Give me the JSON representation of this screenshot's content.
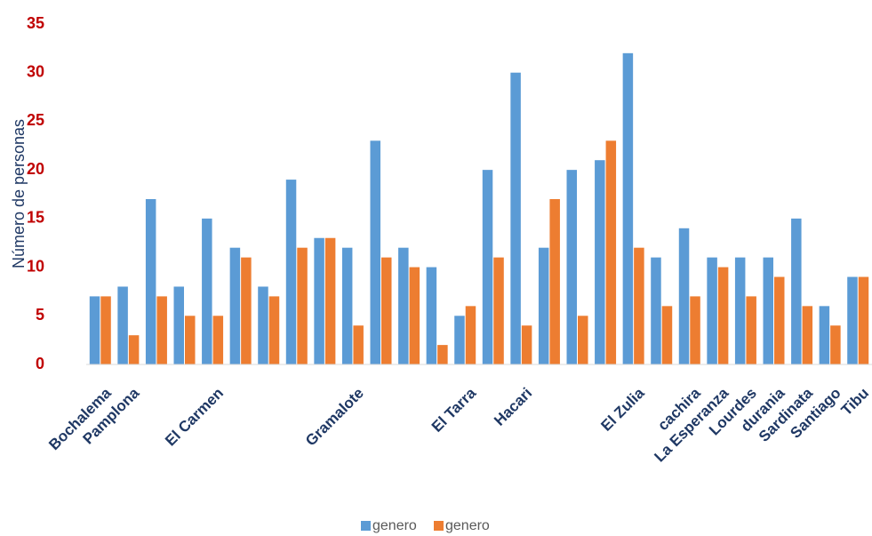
{
  "chart_data": {
    "type": "bar",
    "y_label": "Número de personas",
    "categories": [
      "Bochalema",
      "Pamplona",
      null,
      null,
      "El Carmen",
      null,
      null,
      null,
      null,
      "Gramalote",
      null,
      null,
      null,
      "El Tarra",
      null,
      "Hacari",
      null,
      null,
      null,
      "El Zulia",
      null,
      "cachira",
      "La Esperanza",
      "Lourdes",
      "durania",
      "Sardinata",
      "Santiago",
      "Tibu"
    ],
    "series": [
      {
        "name": "genero",
        "color": "#5b9bd5",
        "values": [
          7,
          8,
          17,
          8,
          15,
          12,
          8,
          19,
          13,
          12,
          23,
          12,
          10,
          5,
          20,
          30,
          12,
          20,
          21,
          32,
          11,
          14,
          11,
          11,
          11,
          15,
          6,
          9
        ]
      },
      {
        "name": "genero",
        "color": "#ed7d31",
        "values": [
          7,
          3,
          7,
          5,
          5,
          11,
          7,
          12,
          13,
          4,
          11,
          10,
          2,
          6,
          11,
          4,
          17,
          5,
          23,
          12,
          6,
          7,
          10,
          7,
          9,
          6,
          4,
          9
        ]
      }
    ],
    "ylim": [
      0,
      35
    ],
    "yticks": [
      0,
      5,
      10,
      15,
      20,
      25,
      30,
      35
    ]
  }
}
